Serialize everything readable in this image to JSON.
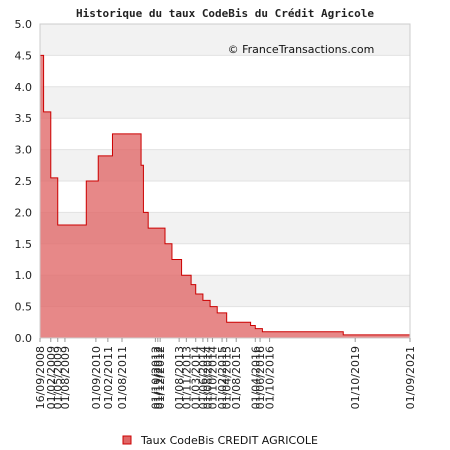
{
  "chart_data": {
    "type": "area",
    "title": "Historique du taux CodeBis du Crédit Agricole",
    "watermark": "© FranceTransactions.com",
    "xlabel": "",
    "ylabel": "",
    "ylim": [
      0,
      5
    ],
    "yticks": [
      "0.0",
      "0.5",
      "1.0",
      "1.5",
      "2.0",
      "2.5",
      "3.0",
      "3.5",
      "4.0",
      "4.5",
      "5.0"
    ],
    "xticks": [
      "16/09/2008",
      "01/02/2009",
      "01/05/2009",
      "01/08/2009",
      "01/09/2010",
      "01/02/2011",
      "01/08/2011",
      "01/10/2012",
      "01/11/2012",
      "01/12/2012",
      "01/08/2013",
      "01/11/2013",
      "01/03/2014",
      "01/06/2014",
      "01/08/2014",
      "01/10/2014",
      "01/02/2015",
      "01/04/2015",
      "01/08/2015",
      "01/04/2016",
      "01/06/2016",
      "01/10/2016",
      "01/10/2019",
      "01/09/2021"
    ],
    "x_range": [
      "2008-09-16",
      "2021-09-01"
    ],
    "grid": true,
    "legend_position": "bottom",
    "colors": {
      "fill": "#e06666",
      "line": "#cc0000",
      "band": "#f2f2f2"
    },
    "series": [
      {
        "name": "Taux CodeBis CREDIT AGRICOLE",
        "step": true,
        "points": [
          [
            "2008-09-16",
            4.5
          ],
          [
            "2008-11-01",
            3.6
          ],
          [
            "2009-02-01",
            2.55
          ],
          [
            "2009-05-01",
            1.8
          ],
          [
            "2010-05-01",
            2.5
          ],
          [
            "2010-10-01",
            2.9
          ],
          [
            "2011-04-01",
            3.25
          ],
          [
            "2012-04-01",
            2.75
          ],
          [
            "2012-05-01",
            2.0
          ],
          [
            "2012-07-01",
            1.75
          ],
          [
            "2013-02-01",
            1.5
          ],
          [
            "2013-05-01",
            1.25
          ],
          [
            "2013-09-01",
            1.0
          ],
          [
            "2014-01-01",
            0.85
          ],
          [
            "2014-03-01",
            0.7
          ],
          [
            "2014-06-01",
            0.6
          ],
          [
            "2014-09-01",
            0.5
          ],
          [
            "2014-12-01",
            0.4
          ],
          [
            "2015-04-01",
            0.25
          ],
          [
            "2016-02-01",
            0.2
          ],
          [
            "2016-04-01",
            0.15
          ],
          [
            "2016-07-01",
            0.1
          ],
          [
            "2019-05-01",
            0.05
          ],
          [
            "2021-09-01",
            0.05
          ]
        ]
      }
    ]
  }
}
